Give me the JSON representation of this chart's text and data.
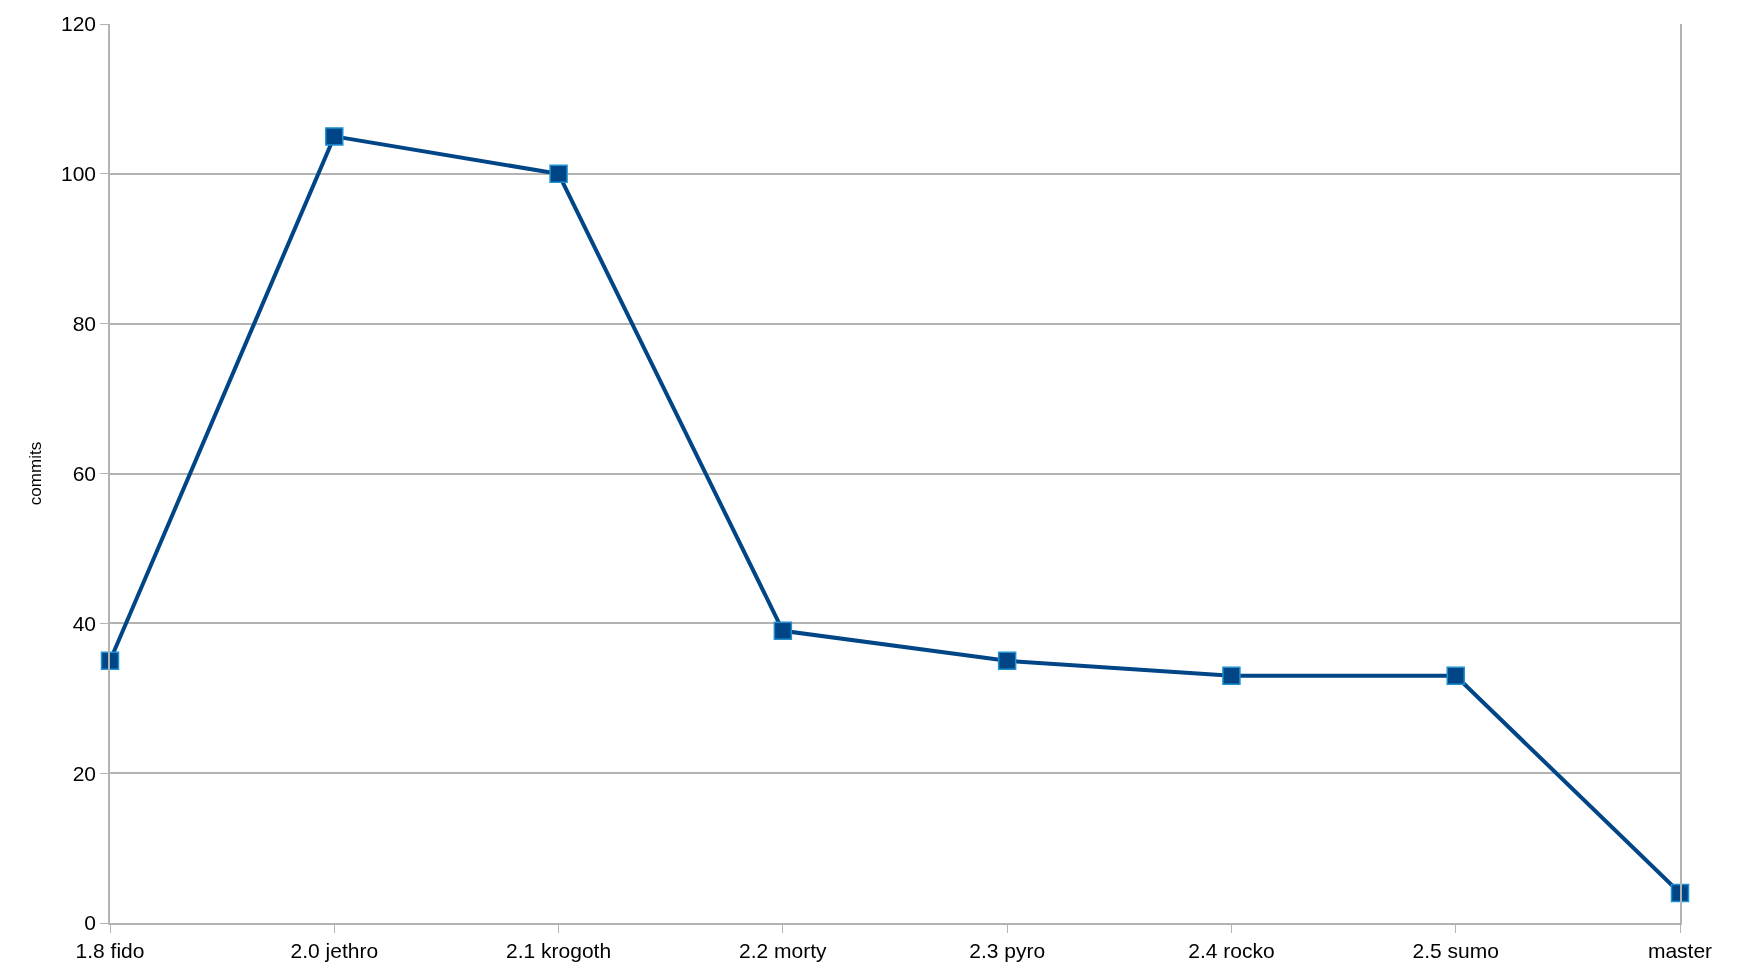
{
  "chart_data": {
    "type": "line",
    "ylabel": "commits",
    "categories": [
      "1.8 fido",
      "2.0 jethro",
      "2.1 krogoth",
      "2.2 morty",
      "2.3 pyro",
      "2.4 rocko",
      "2.5 sumo",
      "master"
    ],
    "series": [
      {
        "color": "#004586",
        "values": [
          35,
          105,
          100,
          39,
          35,
          33,
          33,
          4
        ]
      }
    ],
    "ylim": [
      0,
      120
    ],
    "yticks": [
      0,
      20,
      40,
      60,
      80,
      100,
      120
    ],
    "grid": "y",
    "marker": "square",
    "line_style": "solid",
    "legend": false
  }
}
